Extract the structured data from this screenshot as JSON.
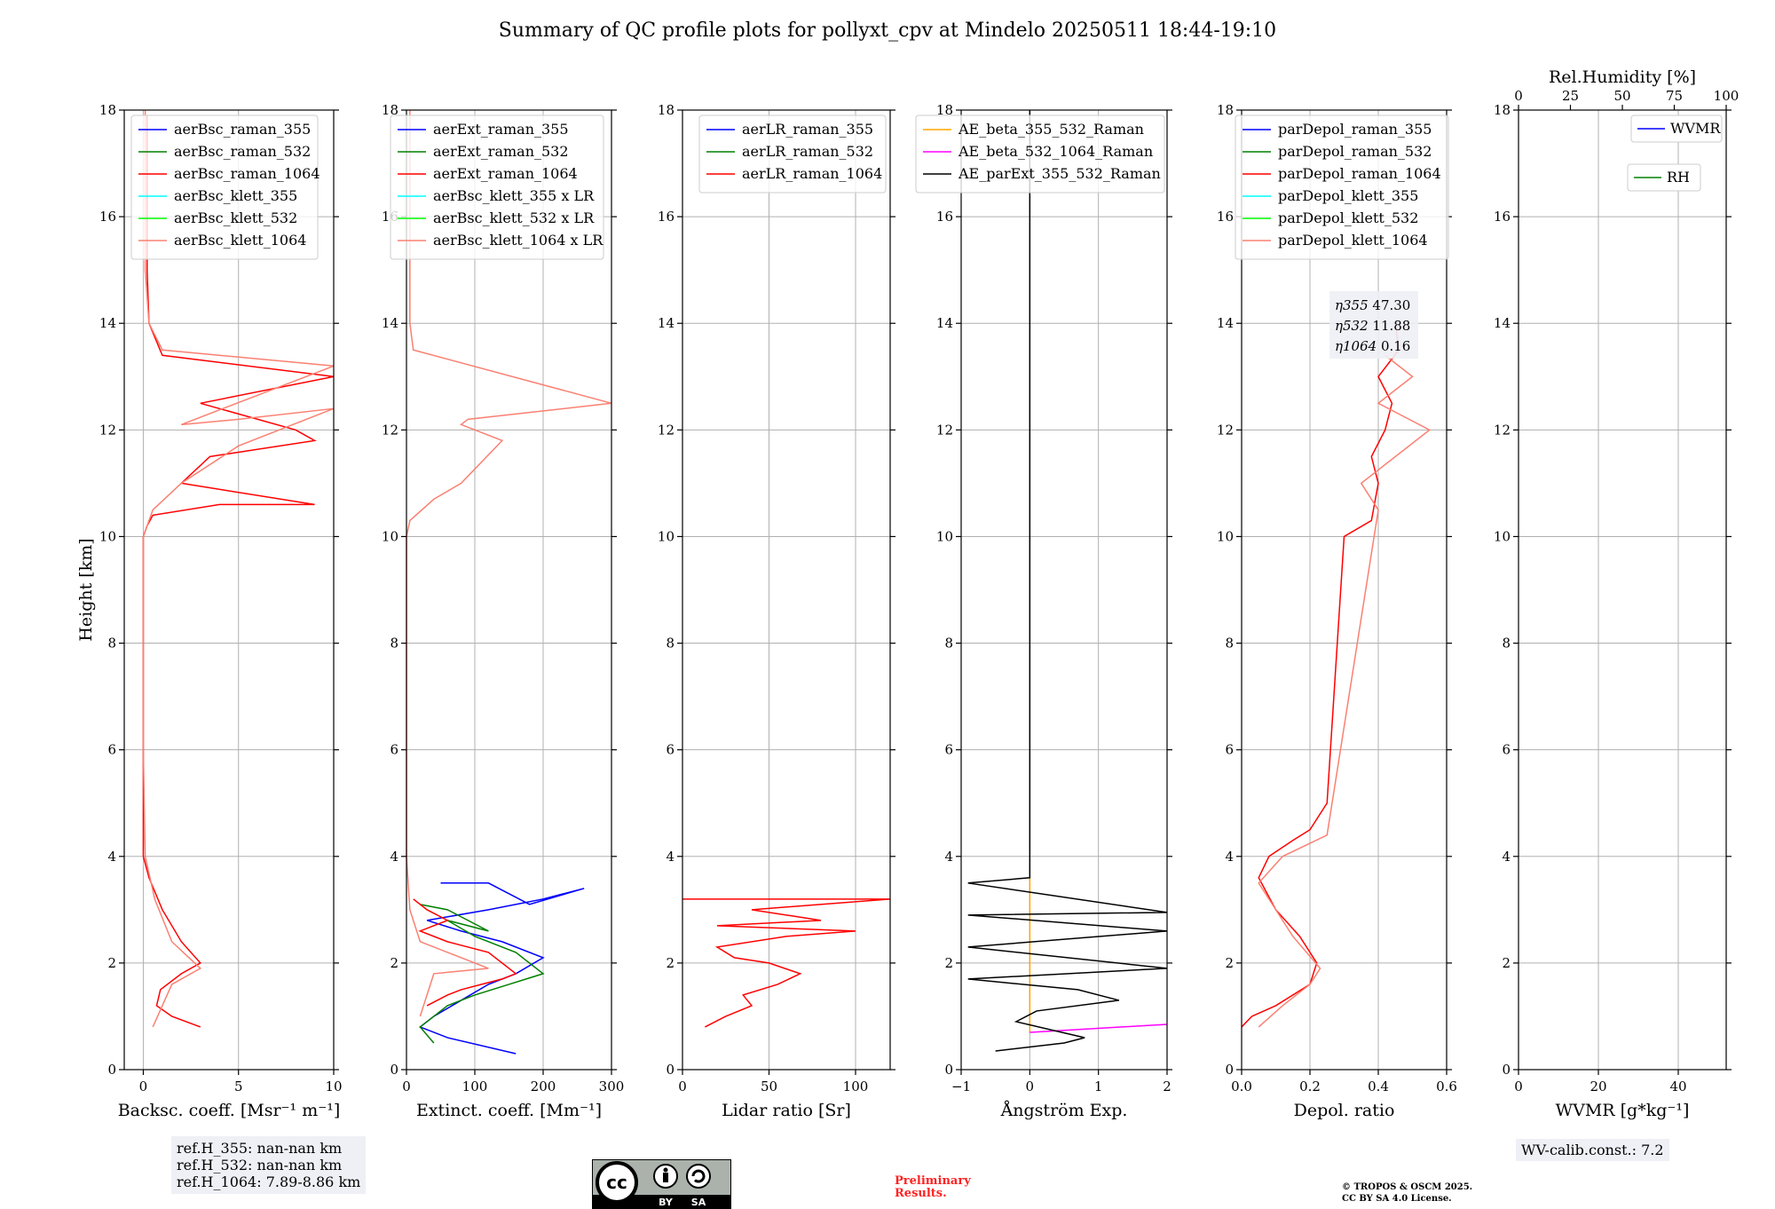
{
  "title": "Summary of QC profile plots for pollyxt_cpv at Mindelo 20250511 18:44-19:10",
  "colors": {
    "blue": "#0000ff",
    "green": "#008000",
    "red": "#ff0000",
    "cyan": "#00ffff",
    "lime": "#00ff00",
    "salmon": "#fa8072",
    "orange": "#ffa500",
    "magenta": "#ff00ff",
    "black": "#000000",
    "grid": "#b0b0b0"
  },
  "notes": {
    "ref_355": "ref.H_355: nan-nan km",
    "ref_532": "ref.H_532: nan-nan km",
    "ref_1064": "ref.H_1064: 7.89-8.86 km",
    "wv_calib": "WV-calib.const.: 7.2",
    "preliminary_1": "Preliminary",
    "preliminary_2": "Results.",
    "copyright_1": "© TROPOS & OSCM 2025.",
    "copyright_2": "CC BY SA 4.0 License.",
    "cc_by": "BY",
    "cc_sa": "SA",
    "cc_logo": "cc"
  },
  "chart_data": [
    {
      "id": "backscatter",
      "type": "line",
      "xlabel": "Backsc. coeff. [Msr⁻¹ m⁻¹]",
      "ylabel": "Height [km]",
      "xlim": [
        -1,
        10
      ],
      "ylim": [
        0,
        18
      ],
      "xticks": [
        0,
        5,
        10
      ],
      "xticklabels": [
        "0",
        "5",
        "10"
      ],
      "yticks": [
        0,
        2,
        4,
        6,
        8,
        10,
        12,
        14,
        16,
        18
      ],
      "grid": true,
      "legend": "top",
      "series": [
        {
          "name": "aerBsc_raman_355",
          "color": "blue",
          "x": [],
          "y": []
        },
        {
          "name": "aerBsc_raman_532",
          "color": "green",
          "x": [],
          "y": []
        },
        {
          "name": "aerBsc_raman_1064",
          "color": "red",
          "x": [
            3.0,
            1.5,
            0.7,
            0.9,
            2.0,
            3.0,
            2.0,
            1.0,
            0.3,
            0.0,
            0.0,
            0.0,
            0.2,
            0.5,
            4.0,
            9.0,
            2.0,
            3.5,
            9.0,
            8.0,
            3.0,
            10.0,
            1.0,
            0.3,
            0.2,
            0.2
          ],
          "y": [
            0.8,
            1.0,
            1.2,
            1.5,
            1.8,
            2.0,
            2.4,
            3.0,
            3.6,
            4.0,
            7.0,
            10.0,
            10.2,
            10.4,
            10.6,
            10.6,
            11.0,
            11.5,
            11.8,
            12.0,
            12.5,
            13.0,
            13.4,
            14.0,
            15.0,
            17.9
          ]
        },
        {
          "name": "aerBsc_klett_355",
          "color": "cyan",
          "x": [],
          "y": []
        },
        {
          "name": "aerBsc_klett_532",
          "color": "lime",
          "x": [],
          "y": []
        },
        {
          "name": "aerBsc_klett_1064",
          "color": "salmon",
          "x": [
            0.5,
            1.0,
            1.5,
            3.0,
            1.5,
            0.6,
            0.1,
            0.0,
            0.0,
            0.5,
            2.0,
            5.0,
            10.0,
            5.0,
            2.0,
            10.0,
            1.0,
            0.3,
            0.1,
            0.1
          ],
          "y": [
            0.8,
            1.2,
            1.6,
            1.9,
            2.4,
            3.2,
            4.0,
            6.0,
            10.0,
            10.5,
            11.0,
            11.7,
            12.4,
            12.2,
            12.1,
            13.2,
            13.5,
            14.0,
            15.0,
            18.0
          ]
        }
      ],
      "annotations": [
        "ref.H_355: nan-nan km",
        "ref.H_532: nan-nan km",
        "ref.H_1064: 7.89-8.86 km"
      ]
    },
    {
      "id": "extinction",
      "type": "line",
      "xlabel": "Extinct. coeff. [Mm⁻¹]",
      "ylabel": "",
      "xlim": [
        0,
        300
      ],
      "ylim": [
        0,
        18
      ],
      "xticks": [
        0,
        100,
        200,
        300
      ],
      "xticklabels": [
        "0",
        "100",
        "200",
        "300"
      ],
      "yticks": [
        0,
        2,
        4,
        6,
        8,
        10,
        12,
        14,
        16,
        18
      ],
      "grid": true,
      "legend": "top",
      "series": [
        {
          "name": "aerExt_raman_355",
          "color": "blue",
          "x": [
            160,
            60,
            20,
            40,
            80,
            120,
            160,
            200,
            140,
            80,
            30,
            120,
            200,
            260,
            180,
            120,
            50
          ],
          "y": [
            0.3,
            0.6,
            0.8,
            1.0,
            1.3,
            1.6,
            1.8,
            2.1,
            2.4,
            2.6,
            2.8,
            3.0,
            3.2,
            3.4,
            3.1,
            3.5,
            3.5
          ]
        },
        {
          "name": "aerExt_raman_532",
          "color": "green",
          "x": [
            40,
            20,
            60,
            100,
            150,
            200,
            160,
            100,
            60,
            120,
            60,
            20
          ],
          "y": [
            0.5,
            0.8,
            1.2,
            1.4,
            1.6,
            1.8,
            2.2,
            2.5,
            2.8,
            2.6,
            3.0,
            3.1
          ]
        },
        {
          "name": "aerExt_raman_1064",
          "color": "red",
          "x": [
            30,
            60,
            80,
            110,
            140,
            160,
            120,
            60,
            20,
            60,
            30,
            10
          ],
          "y": [
            1.2,
            1.4,
            1.5,
            1.6,
            1.7,
            1.8,
            2.2,
            2.4,
            2.6,
            2.8,
            3.0,
            3.2
          ]
        },
        {
          "name": "aerBsc_klett_355 x LR",
          "color": "cyan",
          "x": [],
          "y": []
        },
        {
          "name": "aerBsc_klett_532 x LR",
          "color": "lime",
          "x": [],
          "y": []
        },
        {
          "name": "aerBsc_klett_1064 x LR",
          "color": "salmon",
          "x": [
            20,
            40,
            120,
            20,
            5,
            0,
            0,
            5,
            40,
            80,
            140,
            80,
            90,
            300,
            10,
            5,
            5
          ],
          "y": [
            1.0,
            1.8,
            1.9,
            2.4,
            3.0,
            4.0,
            10.0,
            10.3,
            10.7,
            11.0,
            11.8,
            12.1,
            12.2,
            12.5,
            13.5,
            14.0,
            18.0
          ]
        }
      ]
    },
    {
      "id": "lidar_ratio",
      "type": "line",
      "xlabel": "Lidar ratio [Sr]",
      "ylabel": "",
      "xlim": [
        0,
        120
      ],
      "ylim": [
        0,
        18
      ],
      "xticks": [
        0,
        50,
        100
      ],
      "xticklabels": [
        "0",
        "50",
        "100"
      ],
      "yticks": [
        0,
        2,
        4,
        6,
        8,
        10,
        12,
        14,
        16,
        18
      ],
      "grid": true,
      "legend": "top",
      "series": [
        {
          "name": "aerLR_raman_355",
          "color": "blue",
          "x": [],
          "y": []
        },
        {
          "name": "aerLR_raman_532",
          "color": "green",
          "x": [],
          "y": []
        },
        {
          "name": "aerLR_raman_1064",
          "color": "red",
          "x": [
            13,
            25,
            40,
            35,
            55,
            68,
            50,
            30,
            20,
            60,
            100,
            20,
            80,
            40,
            120,
            0
          ],
          "y": [
            0.8,
            1.0,
            1.2,
            1.4,
            1.6,
            1.8,
            2.0,
            2.1,
            2.3,
            2.5,
            2.6,
            2.7,
            2.8,
            3.0,
            3.2,
            3.2
          ]
        }
      ]
    },
    {
      "id": "angstrom",
      "type": "line",
      "xlabel": "Ångström Exp.",
      "ylabel": "",
      "xlim": [
        -1,
        2
      ],
      "ylim": [
        0,
        18
      ],
      "xticks": [
        -1,
        0,
        1,
        2
      ],
      "xticklabels": [
        "−1",
        "0",
        "1",
        "2"
      ],
      "yticks": [
        0,
        2,
        4,
        6,
        8,
        10,
        12,
        14,
        16,
        18
      ],
      "grid": true,
      "legend": "top",
      "series": [
        {
          "name": "AE_beta_355_532_Raman",
          "color": "orange",
          "x": [
            0,
            0
          ],
          "y": [
            0.7,
            3.6
          ]
        },
        {
          "name": "AE_beta_532_1064_Raman",
          "color": "magenta",
          "x": [
            0,
            2.0
          ],
          "y": [
            0.7,
            0.85
          ]
        },
        {
          "name": "AE_parExt_355_532_Raman",
          "color": "black",
          "x": [
            -0.5,
            0.5,
            0.8,
            0.3,
            -0.2,
            0.1,
            1.3,
            0.7,
            -0.9,
            2.0,
            -0.9,
            2.0,
            -0.9,
            2.0,
            -0.9,
            0,
            0
          ],
          "y": [
            0.35,
            0.5,
            0.6,
            0.75,
            0.9,
            1.1,
            1.3,
            1.5,
            1.7,
            1.9,
            2.3,
            2.6,
            2.9,
            2.95,
            3.5,
            3.6,
            18
          ]
        }
      ]
    },
    {
      "id": "depol",
      "type": "line",
      "xlabel": "Depol. ratio",
      "ylabel": "",
      "xlim": [
        0,
        0.6
      ],
      "ylim": [
        0,
        18
      ],
      "xticks": [
        0,
        0.2,
        0.4,
        0.6
      ],
      "xticklabels": [
        "0.0",
        "0.2",
        "0.4",
        "0.6"
      ],
      "yticks": [
        0,
        2,
        4,
        6,
        8,
        10,
        12,
        14,
        16,
        18
      ],
      "grid": true,
      "legend": "top",
      "series": [
        {
          "name": "parDepol_raman_355",
          "color": "blue",
          "x": [],
          "y": []
        },
        {
          "name": "parDepol_raman_532",
          "color": "green",
          "x": [],
          "y": []
        },
        {
          "name": "parDepol_raman_1064",
          "color": "red",
          "x": [
            0.0,
            0.03,
            0.1,
            0.2,
            0.22,
            0.17,
            0.1,
            0.05,
            0.08,
            0.15,
            0.2,
            0.25,
            0.3,
            0.38,
            0.4,
            0.38,
            0.42,
            0.44,
            0.4,
            0.46,
            0.45
          ],
          "y": [
            0.8,
            1.0,
            1.2,
            1.6,
            2.0,
            2.5,
            3.0,
            3.6,
            4.0,
            4.3,
            4.5,
            5.0,
            10.0,
            10.3,
            11.0,
            11.5,
            12.0,
            12.5,
            13.0,
            13.5,
            14.0
          ]
        },
        {
          "name": "parDepol_klett_355",
          "color": "cyan",
          "x": [],
          "y": []
        },
        {
          "name": "parDepol_klett_532",
          "color": "lime",
          "x": [],
          "y": []
        },
        {
          "name": "parDepol_klett_1064",
          "color": "salmon",
          "x": [
            0.05,
            0.12,
            0.2,
            0.23,
            0.15,
            0.05,
            0.12,
            0.25,
            0.4,
            0.35,
            0.55,
            0.4,
            0.5,
            0.42
          ],
          "y": [
            0.8,
            1.2,
            1.6,
            1.9,
            2.5,
            3.5,
            4.0,
            4.4,
            10.5,
            11.0,
            12.0,
            12.5,
            13.0,
            13.4
          ]
        }
      ],
      "annotation_labels": [
        "η355",
        "η532",
        "η1064"
      ],
      "annotation_values": [
        "47.30",
        "11.88",
        "0.16"
      ]
    },
    {
      "id": "wvmr_rh",
      "type": "line",
      "xlabel": "WVMR [g*kg⁻¹]",
      "ylabel": "",
      "xlim": [
        0,
        52
      ],
      "ylim": [
        0,
        18
      ],
      "xticks": [
        0,
        20,
        40
      ],
      "xticklabels": [
        "0",
        "20",
        "40"
      ],
      "yticks": [
        0,
        2,
        4,
        6,
        8,
        10,
        12,
        14,
        16,
        18
      ],
      "top_xlabel": "Rel.Humidity [%]",
      "top_xlim": [
        0,
        100
      ],
      "top_xticks": [
        0,
        25,
        50,
        75,
        100
      ],
      "top_xticklabels": [
        "0",
        "25",
        "50",
        "75",
        "100"
      ],
      "grid": true,
      "series": [
        {
          "name": "WVMR",
          "color": "blue",
          "x": [],
          "y": []
        },
        {
          "name": "RH",
          "color": "green",
          "x": [],
          "y": []
        }
      ],
      "annotations": [
        "WV-calib.const.: 7.2"
      ]
    }
  ]
}
